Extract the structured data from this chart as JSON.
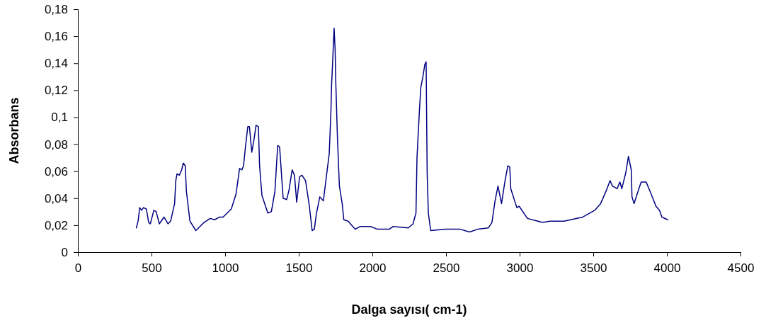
{
  "chart_data": {
    "type": "line",
    "xlabel": "Dalga sayısı( cm-1)",
    "ylabel": "Absorbans",
    "xlim": [
      0,
      4500
    ],
    "xticks": [
      0,
      500,
      1000,
      1500,
      2000,
      2500,
      3000,
      3500,
      4000,
      4500
    ],
    "ylim": [
      0,
      0.18
    ],
    "yticks": [
      {
        "value": 0,
        "label": "0"
      },
      {
        "value": 0.02,
        "label": "0,02"
      },
      {
        "value": 0.04,
        "label": "0,04"
      },
      {
        "value": 0.06,
        "label": "0,06"
      },
      {
        "value": 0.08,
        "label": "0,08"
      },
      {
        "value": 0.1,
        "label": "0,1"
      },
      {
        "value": 0.12,
        "label": "0,12"
      },
      {
        "value": 0.14,
        "label": "0,14"
      },
      {
        "value": 0.16,
        "label": "0,16"
      },
      {
        "value": 0.18,
        "label": "0,18"
      }
    ],
    "grid": false,
    "marker": "none",
    "line_style": "solid",
    "x": [
      397,
      409,
      420,
      433,
      445,
      465,
      481,
      492,
      516,
      532,
      553,
      585,
      612,
      630,
      657,
      665,
      673,
      689,
      705,
      716,
      729,
      737,
      761,
      801,
      857,
      898,
      929,
      962,
      986,
      1042,
      1074,
      1098,
      1114,
      1125,
      1138,
      1154,
      1165,
      1181,
      1197,
      1210,
      1226,
      1234,
      1250,
      1290,
      1314,
      1338,
      1357,
      1370,
      1394,
      1418,
      1434,
      1455,
      1471,
      1486,
      1506,
      1522,
      1546,
      1571,
      1591,
      1606,
      1619,
      1643,
      1667,
      1683,
      1707,
      1718,
      1723,
      1731,
      1740,
      1747,
      1752,
      1763,
      1776,
      1795,
      1806,
      1835,
      1883,
      1915,
      1987,
      2035,
      2115,
      2139,
      2244,
      2276,
      2296,
      2303,
      2320,
      2329,
      2343,
      2356,
      2365,
      2372,
      2380,
      2396,
      2500,
      2596,
      2660,
      2716,
      2788,
      2812,
      2833,
      2853,
      2877,
      2901,
      2920,
      2933,
      2940,
      2981,
      2997,
      3053,
      3157,
      3205,
      3301,
      3429,
      3510,
      3550,
      3590,
      3614,
      3630,
      3662,
      3681,
      3694,
      3721,
      3739,
      3758,
      3763,
      3777,
      3798,
      3825,
      3859,
      3886,
      3926,
      3950,
      3966,
      4006
    ],
    "series": [
      {
        "color": "#000080",
        "values": [
          0.018,
          0.023,
          0.033,
          0.031,
          0.033,
          0.032,
          0.022,
          0.021,
          0.031,
          0.03,
          0.021,
          0.026,
          0.021,
          0.023,
          0.036,
          0.053,
          0.058,
          0.057,
          0.061,
          0.066,
          0.064,
          0.045,
          0.023,
          0.016,
          0.022,
          0.025,
          0.024,
          0.026,
          0.026,
          0.032,
          0.043,
          0.062,
          0.061,
          0.064,
          0.078,
          0.093,
          0.093,
          0.074,
          0.084,
          0.094,
          0.093,
          0.064,
          0.042,
          0.029,
          0.03,
          0.045,
          0.079,
          0.078,
          0.04,
          0.039,
          0.046,
          0.061,
          0.057,
          0.037,
          0.056,
          0.057,
          0.053,
          0.035,
          0.016,
          0.017,
          0.028,
          0.041,
          0.038,
          0.052,
          0.073,
          0.103,
          0.124,
          0.143,
          0.166,
          0.15,
          0.124,
          0.084,
          0.049,
          0.036,
          0.024,
          0.023,
          0.017,
          0.019,
          0.019,
          0.017,
          0.017,
          0.019,
          0.018,
          0.021,
          0.029,
          0.07,
          0.106,
          0.122,
          0.13,
          0.139,
          0.141,
          0.059,
          0.029,
          0.016,
          0.017,
          0.017,
          0.015,
          0.017,
          0.018,
          0.022,
          0.038,
          0.049,
          0.036,
          0.053,
          0.064,
          0.063,
          0.047,
          0.033,
          0.034,
          0.025,
          0.022,
          0.023,
          0.023,
          0.026,
          0.031,
          0.036,
          0.046,
          0.053,
          0.049,
          0.047,
          0.052,
          0.047,
          0.059,
          0.071,
          0.061,
          0.041,
          0.036,
          0.043,
          0.052,
          0.052,
          0.045,
          0.034,
          0.031,
          0.026,
          0.024
        ]
      }
    ]
  }
}
